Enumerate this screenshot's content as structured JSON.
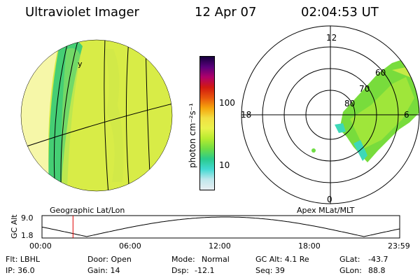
{
  "header": {
    "instrument": "Ultraviolet Imager",
    "date": "12 Apr 07",
    "time": "02:04:53 UT"
  },
  "colorbar": {
    "unit_label": "photon cm⁻²s⁻¹",
    "ticks": [
      "100",
      "10"
    ],
    "colors": [
      "#e8eef2",
      "#bfe7ec",
      "#42d9d2",
      "#2acb8c",
      "#6fdd44",
      "#b7ec2f",
      "#eaf24b",
      "#f2df42",
      "#f5a40c",
      "#e8550c",
      "#d21a10",
      "#b0006a",
      "#5a007c",
      "#16003d"
    ]
  },
  "geo_panel": {
    "caption": "Geographic Lat/Lon",
    "disk_color": "#d8ec47",
    "dayside_color": "#f6f7a8",
    "band_color": "#2bc97c",
    "mark": "y"
  },
  "polar_panel": {
    "caption": "Apex MLat/MLT",
    "mlt_labels": {
      "top": "12",
      "left": "18",
      "right": "6",
      "bottom": "0"
    },
    "lat_labels": [
      "60",
      "70",
      "80"
    ]
  },
  "altitude_plot": {
    "ylabel": "GC Alt",
    "ymax": "9.0",
    "ymin": "1.8",
    "x_ticks": [
      "00:00",
      "06:00",
      "12:00",
      "18:00",
      "23:59"
    ],
    "current_time_hours": 2.08,
    "marker_color": "#e00000"
  },
  "status": {
    "filter": "Flt: LBHL",
    "door": "Door: Open",
    "mode_label": "Mode:",
    "mode_value": "Normal",
    "gc_alt": "GC Alt: 4.1 Re",
    "glat_label": "GLat:",
    "glat_value": "-43.7",
    "ip": "IP: 36.0",
    "gain": "Gain: 14",
    "dsp_label": "Dsp:",
    "dsp_value": "-12.1",
    "seq": "Seq: 39",
    "glon_label": "GLon:",
    "glon_value": "88.8"
  }
}
